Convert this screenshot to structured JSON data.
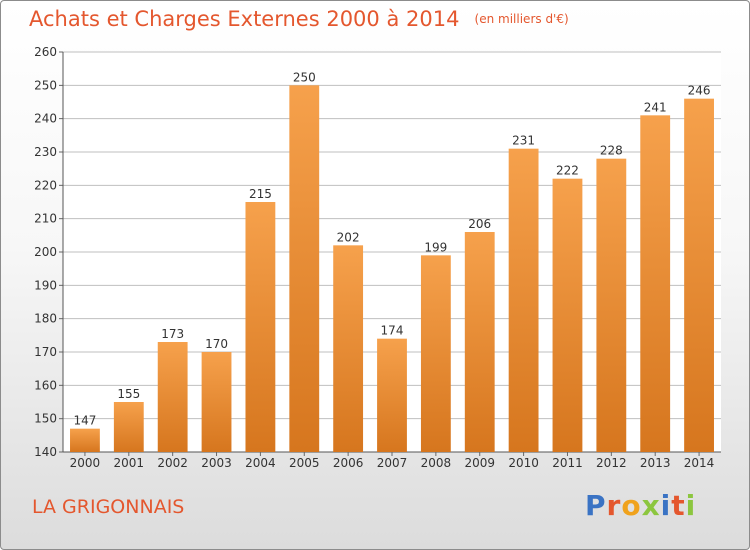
{
  "header": {
    "title": "Achats et Charges Externes 2000 à 2014",
    "subtitle": "(en milliers d'€)"
  },
  "footer": {
    "place": "LA GRIGONNAIS",
    "logo_text": "Proxiti",
    "logo_colors": [
      "#3a73c4",
      "#e4572e",
      "#f0a21c",
      "#8cc63f",
      "#3a73c4",
      "#e4572e",
      "#8cc63f"
    ]
  },
  "colors": {
    "bar_light": "#f6a14c",
    "bar_dark": "#d6761e",
    "grid": "#bfbfbf",
    "axis_text": "#333333",
    "title": "#e4572e"
  },
  "chart_data": {
    "type": "bar",
    "title": "Achats et Charges Externes 2000 à 2014",
    "subtitle": "(en milliers d'€)",
    "categories": [
      "2000",
      "2001",
      "2002",
      "2003",
      "2004",
      "2005",
      "2006",
      "2007",
      "2008",
      "2009",
      "2010",
      "2011",
      "2012",
      "2013",
      "2014"
    ],
    "values": [
      147,
      155,
      173,
      170,
      215,
      250,
      202,
      174,
      199,
      206,
      231,
      222,
      228,
      241,
      246
    ],
    "ylim": [
      140,
      260
    ],
    "yticks": [
      140,
      150,
      160,
      170,
      180,
      190,
      200,
      210,
      220,
      230,
      240,
      250,
      260
    ],
    "grid": true,
    "data_labels": true,
    "xlabel": "",
    "ylabel": ""
  }
}
